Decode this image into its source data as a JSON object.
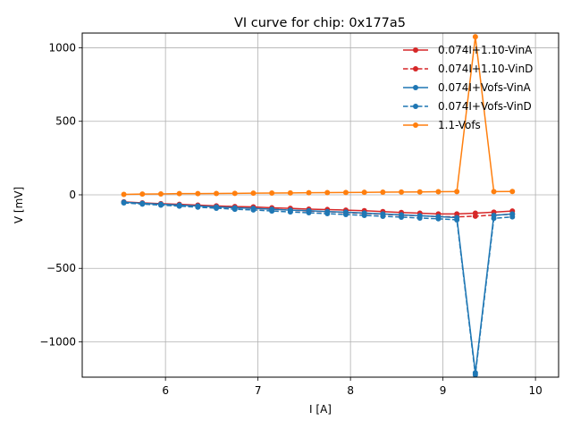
{
  "chart_data": {
    "type": "line",
    "title": "VI curve for chip: 0x177a5",
    "xlabel": "I [A]",
    "ylabel": "V [mV]",
    "xlim": [
      5.1,
      10.25
    ],
    "ylim": [
      -1240,
      1100
    ],
    "xticks": [
      6,
      7,
      8,
      9,
      10
    ],
    "xtick_labels": [
      "6",
      "7",
      "8",
      "9",
      "10"
    ],
    "yticks": [
      -1000,
      -500,
      0,
      500,
      1000
    ],
    "ytick_labels": [
      "−1000",
      "−500",
      "0",
      "500",
      "1000"
    ],
    "grid": true,
    "legend_position": "top-right",
    "x": [
      5.55,
      5.75,
      5.95,
      6.15,
      6.35,
      6.55,
      6.75,
      6.95,
      7.15,
      7.35,
      7.55,
      7.75,
      7.95,
      8.15,
      8.35,
      8.55,
      8.75,
      8.95,
      9.15,
      9.35,
      9.55,
      9.75
    ],
    "series": [
      {
        "name": "0.074I+1.10-VinA",
        "color": "#d62728",
        "dash": "solid",
        "values": [
          -48,
          -55,
          -60,
          -65,
          -70,
          -75,
          -80,
          -82,
          -88,
          -92,
          -97,
          -100,
          -104,
          -108,
          -114,
          -120,
          -125,
          -130,
          -130,
          -125,
          -118,
          -110
        ]
      },
      {
        "name": "0.074I+1.10-VinD",
        "color": "#d62728",
        "dash": "dashed",
        "values": [
          -52,
          -60,
          -65,
          -70,
          -76,
          -82,
          -88,
          -92,
          -98,
          -104,
          -110,
          -115,
          -120,
          -126,
          -132,
          -138,
          -143,
          -148,
          -150,
          -145,
          -138,
          -132
        ]
      },
      {
        "name": "0.074I+Vofs-VinA",
        "color": "#1f77b4",
        "dash": "solid",
        "values": [
          -50,
          -58,
          -64,
          -70,
          -76,
          -82,
          -88,
          -92,
          -98,
          -104,
          -108,
          -114,
          -118,
          -124,
          -130,
          -136,
          -142,
          -148,
          -155,
          -1210,
          -140,
          -130
        ]
      },
      {
        "name": "0.074I+Vofs-VinD",
        "color": "#1f77b4",
        "dash": "dashed",
        "values": [
          -55,
          -63,
          -70,
          -77,
          -84,
          -91,
          -98,
          -103,
          -110,
          -116,
          -122,
          -128,
          -134,
          -140,
          -146,
          -152,
          -158,
          -163,
          -170,
          -1225,
          -160,
          -150
        ]
      },
      {
        "name": "1.1-Vofs",
        "color": "#ff7f0e",
        "dash": "solid",
        "values": [
          3,
          5,
          6,
          8,
          8,
          9,
          10,
          11,
          12,
          13,
          14,
          15,
          16,
          17,
          18,
          19,
          20,
          21,
          22,
          1075,
          22,
          23
        ]
      }
    ]
  }
}
